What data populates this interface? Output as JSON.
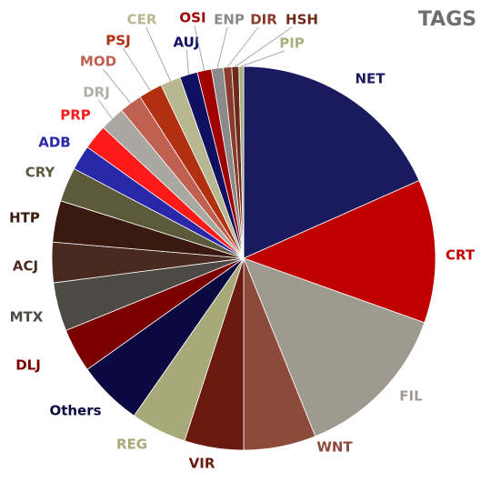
{
  "chart_data": {
    "type": "pie",
    "title": "TAGS",
    "categories": [
      "NET",
      "CRT",
      "FIL",
      "WNT",
      "VIR",
      "REG",
      "Others",
      "DLJ",
      "MTX",
      "ACJ",
      "HTP",
      "CRY",
      "ADB",
      "PRP",
      "DRJ",
      "MOD",
      "PSJ",
      "CER",
      "AUJ",
      "OSI",
      "ENP",
      "DIR",
      "HSH",
      "PIP"
    ],
    "values": [
      18.4,
      12.1,
      13.5,
      6.1,
      5.0,
      4.7,
      5.5,
      3.7,
      4.1,
      3.4,
      3.5,
      2.9,
      2.1,
      2.1,
      2.1,
      1.9,
      2.0,
      1.7,
      1.5,
      1.2,
      1.0,
      0.7,
      0.6,
      0.4
    ],
    "colors": [
      "#1a1a5e",
      "#c00000",
      "#9e9a8f",
      "#8c4a3a",
      "#6b1a0f",
      "#a8a878",
      "#0a0a40",
      "#7a0000",
      "#4d4a45",
      "#4a2a20",
      "#3a1a10",
      "#5c5a3a",
      "#2828a8",
      "#ff1a1a",
      "#a8a8a0",
      "#c06050",
      "#b03010",
      "#b8b890",
      "#101060",
      "#a00000",
      "#8a8a8a",
      "#8a3a2a",
      "#6b2a1a",
      "#a8b080"
    ]
  }
}
